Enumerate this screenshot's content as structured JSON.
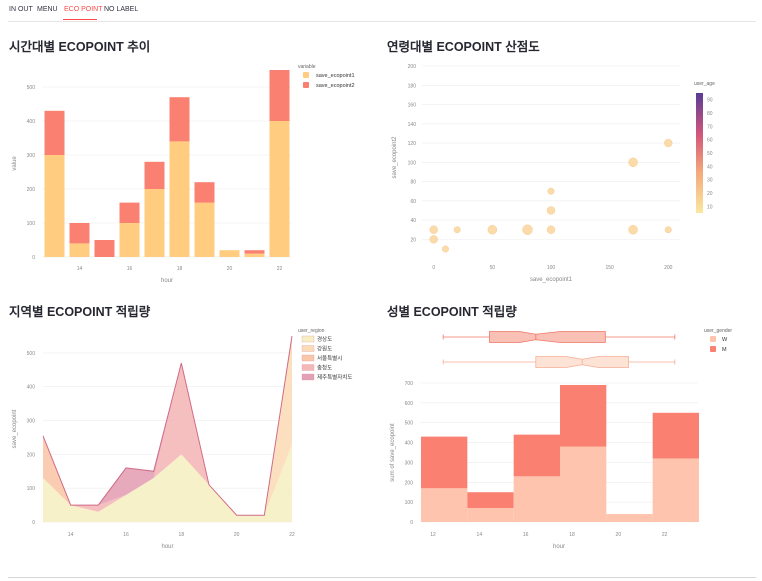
{
  "tabs": [
    {
      "label": "IN OUT",
      "active": false
    },
    {
      "label": "MENU",
      "active": false
    },
    {
      "label": "ECO POINT",
      "active": true
    },
    {
      "label": "NO LABEL",
      "active": false
    }
  ],
  "colors": {
    "accent": "#ff4b4b",
    "save1": "#ffcc80",
    "save2": "#fa8072",
    "light_salmon": "#ffc4ad"
  },
  "panels": {
    "p1": {
      "title": "시간대별 ECOPOINT 추이"
    },
    "p2": {
      "title": "연령대별 ECOPOINT 산점도"
    },
    "p3": {
      "title": "지역별 ECOPOINT 적립량"
    },
    "p4": {
      "title": "성별 ECOPOINT 적립량"
    }
  },
  "chart_data": [
    {
      "type": "bar",
      "stacked": true,
      "xlabel": "hour",
      "ylabel": "value",
      "ylim": [
        0,
        550
      ],
      "yticks": [
        0,
        100,
        200,
        300,
        400,
        500
      ],
      "xticks": [
        14,
        16,
        18,
        20,
        22
      ],
      "x": [
        13,
        14,
        15,
        16,
        17,
        18,
        19,
        20,
        21,
        22
      ],
      "legend_title": "variable",
      "legend_position": "top-right",
      "series": [
        {
          "name": "save_ecopoint1",
          "color": "#ffcc80",
          "values": [
            300,
            40,
            0,
            100,
            200,
            340,
            160,
            20,
            10,
            400
          ]
        },
        {
          "name": "save_ecopoint2",
          "color": "#fa8072",
          "values": [
            130,
            60,
            50,
            60,
            80,
            130,
            60,
            0,
            10,
            150
          ]
        }
      ]
    },
    {
      "type": "scatter",
      "xlabel": "save_ecopoint1",
      "ylabel": "save_ecopoint2",
      "xlim": [
        -10,
        210
      ],
      "ylim": [
        10,
        200
      ],
      "xticks": [
        0,
        50,
        100,
        150,
        200
      ],
      "yticks": [
        20,
        40,
        60,
        80,
        100,
        120,
        140,
        160,
        180,
        200
      ],
      "colorbar": {
        "title": "user_age",
        "ticks": [
          10,
          20,
          30,
          40,
          50,
          60,
          70,
          80,
          90
        ]
      },
      "points": [
        {
          "x": 0,
          "y": 30,
          "size": 20
        },
        {
          "x": 0,
          "y": 20,
          "size": 20
        },
        {
          "x": 10,
          "y": 10,
          "size": 10
        },
        {
          "x": 20,
          "y": 30,
          "size": 10
        },
        {
          "x": 50,
          "y": 30,
          "size": 30
        },
        {
          "x": 80,
          "y": 30,
          "size": 40
        },
        {
          "x": 100,
          "y": 30,
          "size": 20
        },
        {
          "x": 100,
          "y": 50,
          "size": 20
        },
        {
          "x": 100,
          "y": 70,
          "size": 10
        },
        {
          "x": 170,
          "y": 100,
          "size": 30
        },
        {
          "x": 170,
          "y": 30,
          "size": 30
        },
        {
          "x": 200,
          "y": 120,
          "size": 20
        },
        {
          "x": 200,
          "y": 30,
          "size": 10
        }
      ]
    },
    {
      "type": "area",
      "stacked": true,
      "xlabel": "hour",
      "ylabel": "save_ecopoint",
      "ylim": [
        0,
        550
      ],
      "yticks": [
        0,
        100,
        200,
        300,
        400,
        500
      ],
      "xticks": [
        14,
        16,
        18,
        20,
        22
      ],
      "x": [
        13,
        14,
        15,
        16,
        17,
        18,
        19,
        20,
        21,
        22
      ],
      "legend_title": "user_region",
      "legend_position": "top-right",
      "series": [
        {
          "name": "경상도",
          "color": "#f6efc4",
          "values": [
            130,
            50,
            30,
            80,
            130,
            200,
            110,
            20,
            20,
            230
          ]
        },
        {
          "name": "강원도",
          "color": "#fbdcb8",
          "values": [
            0,
            0,
            0,
            0,
            0,
            0,
            0,
            0,
            0,
            320
          ]
        },
        {
          "name": "서울특별시",
          "color": "#f9c7aa",
          "values": [
            125,
            0,
            0,
            0,
            0,
            0,
            0,
            0,
            0,
            0
          ]
        },
        {
          "name": "충청도",
          "color": "#f5b8b8",
          "values": [
            0,
            0,
            20,
            0,
            0,
            270,
            0,
            0,
            0,
            0
          ]
        },
        {
          "name": "제주특별자치도",
          "color": "#e4a1b6",
          "values": [
            0,
            0,
            0,
            80,
            20,
            0,
            0,
            0,
            0,
            0
          ]
        }
      ]
    },
    {
      "type": "bar",
      "stacked": true,
      "histogram": true,
      "xlabel": "hour",
      "ylabel": "sum of save_ecopoint",
      "ylim": [
        0,
        700
      ],
      "yticks": [
        0,
        100,
        200,
        300,
        400,
        500,
        600,
        700
      ],
      "xticks": [
        12,
        14,
        16,
        18,
        20,
        22
      ],
      "bins": [
        [
          12,
          14
        ],
        [
          14,
          16
        ],
        [
          16,
          18
        ],
        [
          18,
          20
        ],
        [
          20,
          22
        ],
        [
          22,
          24
        ]
      ],
      "legend_title": "user_gender",
      "legend_position": "top-right",
      "series": [
        {
          "name": "W",
          "color": "#ffc4ad",
          "values": [
            170,
            70,
            230,
            380,
            40,
            320
          ]
        },
        {
          "name": "M",
          "color": "#fa8072",
          "values": [
            260,
            80,
            210,
            310,
            0,
            230
          ]
        }
      ],
      "marginal_boxplots": [
        {
          "name": "M",
          "min": 13,
          "q1": 15,
          "median": 17,
          "q3": 20,
          "max": 23
        },
        {
          "name": "W",
          "min": 13,
          "q1": 17,
          "median": 19,
          "q3": 21,
          "max": 23
        }
      ]
    }
  ]
}
